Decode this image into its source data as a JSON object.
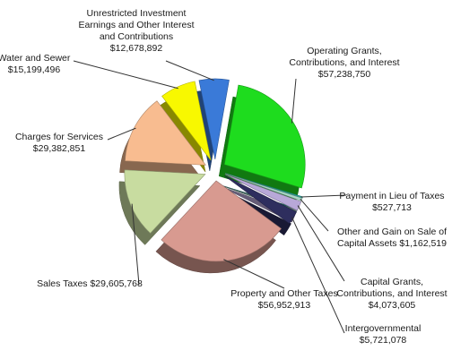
{
  "chart_data": {
    "type": "pie",
    "title": "",
    "slices": [
      {
        "name": "Operating Grants, Contributions, and Interest",
        "label_lines": [
          "Operating Grants,",
          "Contributions, and Interest",
          "$57,238,750"
        ],
        "value": 57238750,
        "color": "#1edc1e"
      },
      {
        "name": "Payment in Lieu of Taxes",
        "label_lines": [
          "Payment in Lieu of Taxes",
          "$527,713"
        ],
        "value": 527713,
        "color": "#2aa8a0"
      },
      {
        "name": "Other and Gain on Sale of Capital Assets",
        "label_lines": [
          "Other and Gain on Sale of",
          "Capital Assets $1,162,519"
        ],
        "value": 1162519,
        "color": "#a8d8c8"
      },
      {
        "name": "Capital Grants, Contributions, and Interest",
        "label_lines": [
          "Capital Grants,",
          "Contributions, and Interest",
          "$4,073,605"
        ],
        "value": 4073605,
        "color": "#b8a8d8"
      },
      {
        "name": "Intergovernmental",
        "label_lines": [
          "Intergovernmental",
          "$5,721,078"
        ],
        "value": 5721078,
        "color": "#2e2e5e"
      },
      {
        "name": "Property and Other Taxes",
        "label_lines": [
          "Property and Other Taxes",
          "$56,952,913"
        ],
        "value": 56952913,
        "color": "#d89a90"
      },
      {
        "name": "Sales Taxes",
        "label_lines": [
          "Sales Taxes $29,605,768"
        ],
        "value": 29605768,
        "color": "#c8dca0"
      },
      {
        "name": "Charges for Services",
        "label_lines": [
          "Charges for Services",
          "$29,382,851"
        ],
        "value": 29382851,
        "color": "#f8bc90"
      },
      {
        "name": "Water and Sewer",
        "label_lines": [
          "Water and Sewer",
          "$15,199,496"
        ],
        "value": 15199496,
        "color": "#f8f800"
      },
      {
        "name": "Unrestricted Investment Earnings and Other Interest and Contributions",
        "label_lines": [
          "Unrestricted Investment",
          "Earnings and Other Interest",
          "and Contributions",
          "$12,678,892"
        ],
        "value": 12678892,
        "color": "#3a7ad8"
      }
    ]
  }
}
